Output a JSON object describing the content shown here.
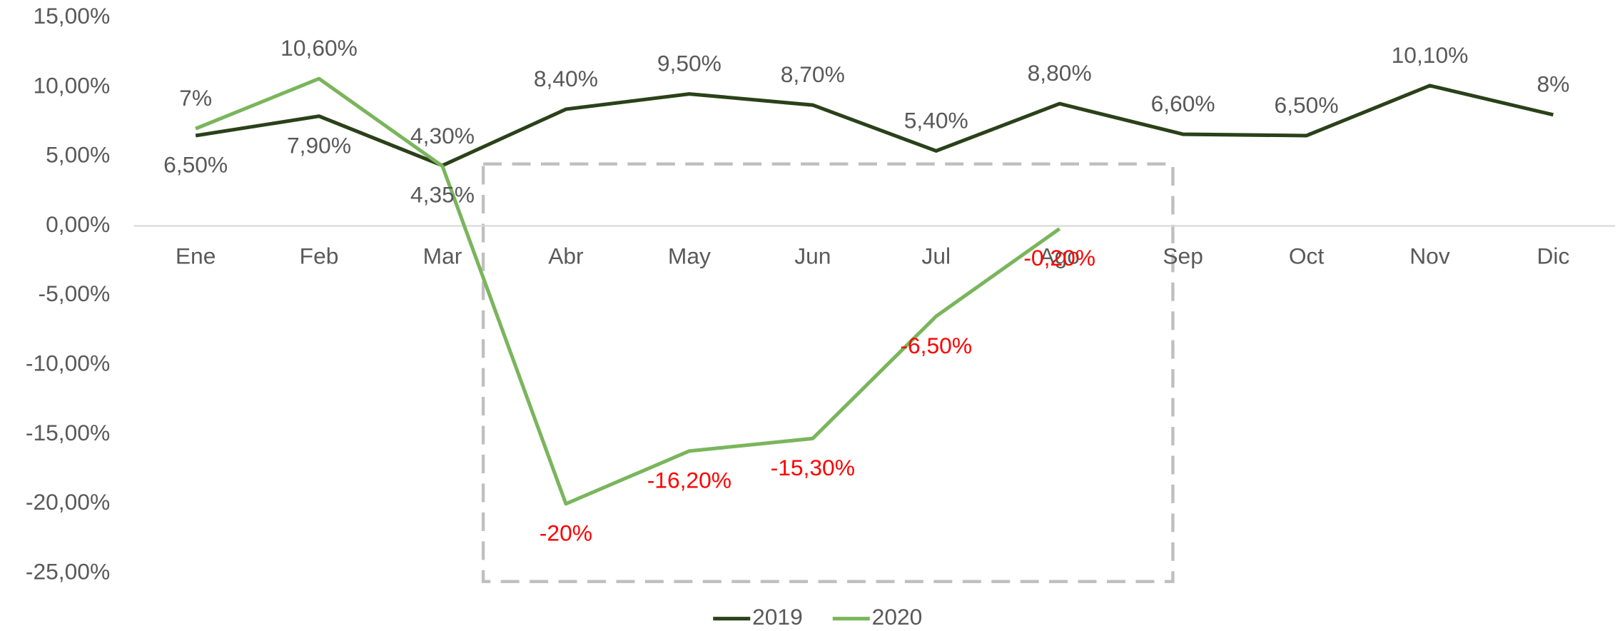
{
  "chart_data": {
    "type": "line",
    "categories": [
      "Ene",
      "Feb",
      "Mar",
      "Abr",
      "May",
      "Jun",
      "Jul",
      "Ago",
      "Sep",
      "Oct",
      "Nov",
      "Dic"
    ],
    "series": [
      {
        "name": "2019",
        "color": "#2a4119",
        "values": [
          6.5,
          7.9,
          4.35,
          8.4,
          9.5,
          8.7,
          5.4,
          8.8,
          6.6,
          6.5,
          10.1,
          8
        ],
        "value_labels": [
          "6,50%",
          "7,90%",
          "4,35%",
          "8,40%",
          "9,50%",
          "8,70%",
          "5,40%",
          "8,80%",
          "6,60%",
          "6,50%",
          "10,10%",
          "8%"
        ]
      },
      {
        "name": "2020",
        "color": "#7ab55c",
        "values": [
          7,
          10.6,
          4.3,
          -20,
          -16.2,
          -15.3,
          -6.5,
          -0.2,
          null,
          null,
          null,
          null
        ],
        "value_labels": [
          "7%",
          "10,60%",
          "4,30%",
          "-20%",
          "-16,20%",
          "-15,30%",
          "-6,50%",
          "-0,20%",
          null,
          null,
          null,
          null
        ]
      }
    ],
    "ylim": [
      -25,
      15
    ],
    "yticks": [
      {
        "value": -25,
        "label": "-25,00%"
      },
      {
        "value": -20,
        "label": "-20,00%"
      },
      {
        "value": -15,
        "label": "-15,00%"
      },
      {
        "value": -10,
        "label": "-10,00%"
      },
      {
        "value": -5,
        "label": "-5,00%"
      },
      {
        "value": 0,
        "label": "0,00%"
      },
      {
        "value": 5,
        "label": "5,00%"
      },
      {
        "value": 10,
        "label": "10,00%"
      },
      {
        "value": 15,
        "label": "15,00%"
      }
    ],
    "legend": "bottom"
  }
}
